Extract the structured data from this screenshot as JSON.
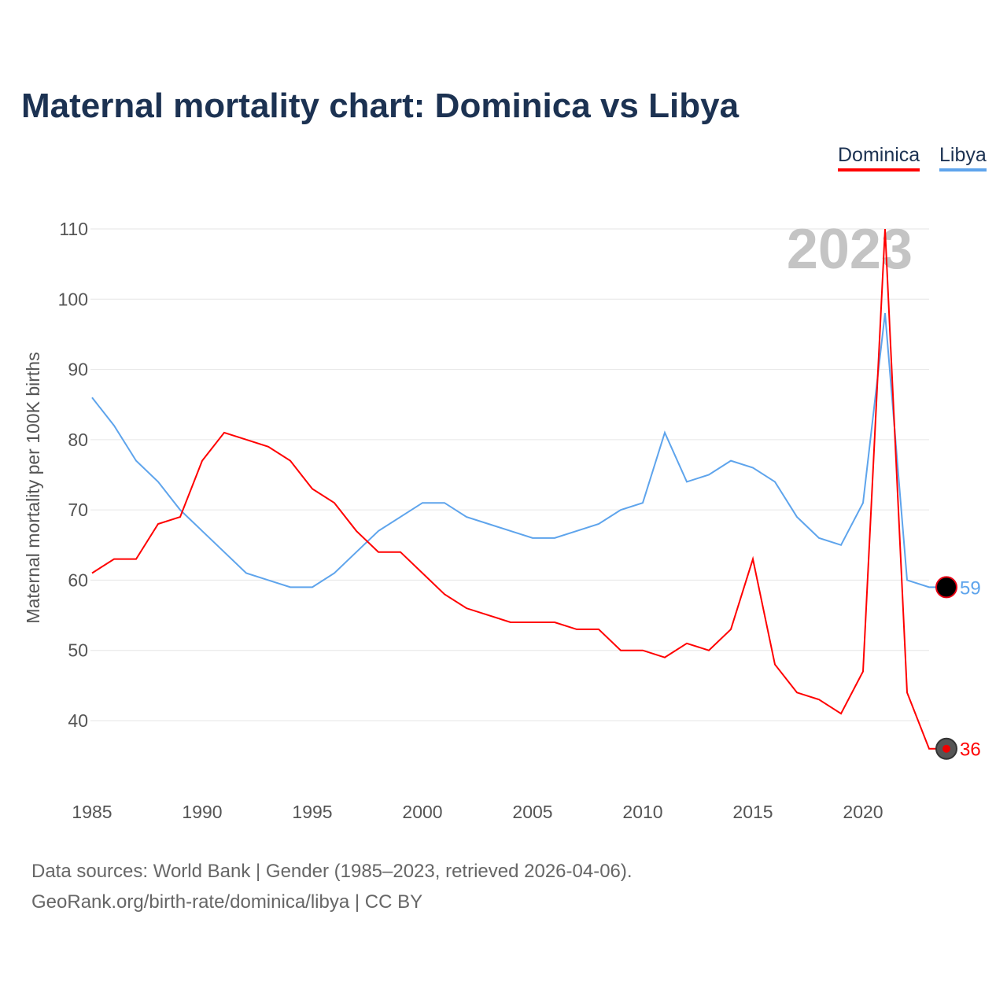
{
  "chart_data": {
    "type": "line",
    "title": "Maternal mortality chart: Dominica vs Libya",
    "ylabel": "Maternal mortality per 100K births",
    "xlabel": "",
    "year_label": "2023",
    "xlim": [
      1985,
      2023
    ],
    "ylim": [
      30,
      110
    ],
    "yticks": [
      40,
      50,
      60,
      70,
      80,
      90,
      100,
      110
    ],
    "xticks": [
      1985,
      1990,
      1995,
      2000,
      2005,
      2010,
      2015,
      2020
    ],
    "grid": true,
    "legend_position": "top-right",
    "x": [
      1985,
      1986,
      1987,
      1988,
      1989,
      1990,
      1991,
      1992,
      1993,
      1994,
      1995,
      1996,
      1997,
      1998,
      1999,
      2000,
      2001,
      2002,
      2003,
      2004,
      2005,
      2006,
      2007,
      2008,
      2009,
      2010,
      2011,
      2012,
      2013,
      2014,
      2015,
      2016,
      2017,
      2018,
      2019,
      2020,
      2021,
      2022,
      2023
    ],
    "series": [
      {
        "name": "Dominica",
        "color": "#ff0000",
        "end_label": "36",
        "values": [
          61,
          63,
          63,
          68,
          69,
          77,
          81,
          80,
          79,
          77,
          73,
          71,
          67,
          64,
          64,
          61,
          58,
          56,
          55,
          54,
          54,
          54,
          53,
          53,
          50,
          50,
          49,
          51,
          50,
          53,
          63,
          48,
          44,
          43,
          41,
          47,
          110,
          44,
          36
        ]
      },
      {
        "name": "Libya",
        "color": "#5ea4ec",
        "end_label": "59",
        "values": [
          86,
          82,
          77,
          74,
          70,
          67,
          64,
          61,
          60,
          59,
          59,
          61,
          64,
          67,
          69,
          71,
          71,
          69,
          68,
          67,
          66,
          66,
          67,
          68,
          70,
          71,
          81,
          74,
          75,
          77,
          76,
          74,
          69,
          66,
          65,
          71,
          98,
          60,
          59
        ]
      }
    ]
  },
  "footer": {
    "line1": "Data sources: World Bank | Gender (1985–2023, retrieved 2026-04-06).",
    "line2": "GeoRank.org/birth-rate/dominica/libya | CC BY"
  }
}
